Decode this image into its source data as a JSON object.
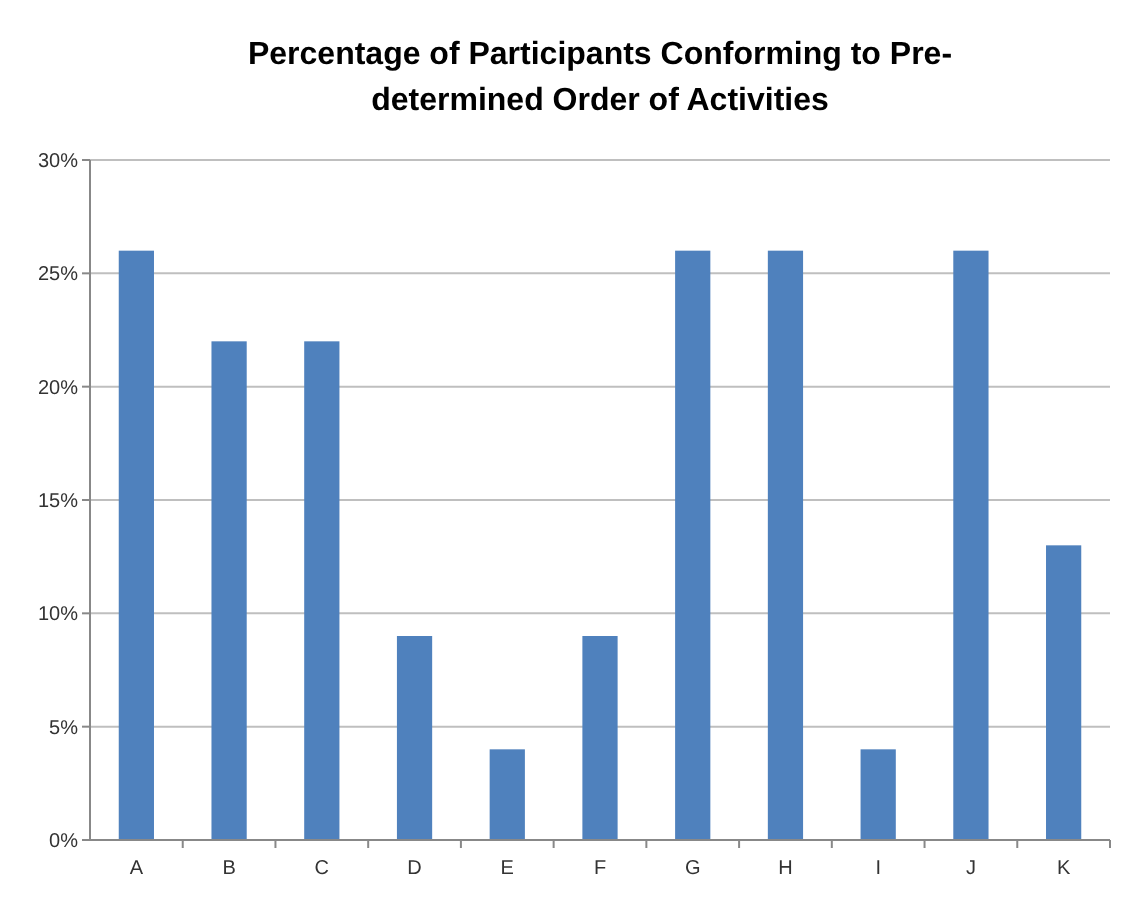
{
  "chart_data": {
    "type": "bar",
    "title": "Percentage of Participants Conforming to Pre-determined Order of Activities",
    "categories": [
      "A",
      "B",
      "C",
      "D",
      "E",
      "F",
      "G",
      "H",
      "I",
      "J",
      "K"
    ],
    "values": [
      26,
      22,
      22,
      9,
      4,
      9,
      26,
      26,
      4,
      26,
      13
    ],
    "color": "#4f81bd",
    "ylim": [
      0,
      30
    ],
    "yticks": [
      {
        "value": 0,
        "label": "0%"
      },
      {
        "value": 5,
        "label": "5%"
      },
      {
        "value": 10,
        "label": "10%"
      },
      {
        "value": 15,
        "label": "15%"
      },
      {
        "value": 20,
        "label": "20%"
      },
      {
        "value": 25,
        "label": "25%"
      },
      {
        "value": 30,
        "label": "30%"
      }
    ],
    "grid": "y"
  }
}
